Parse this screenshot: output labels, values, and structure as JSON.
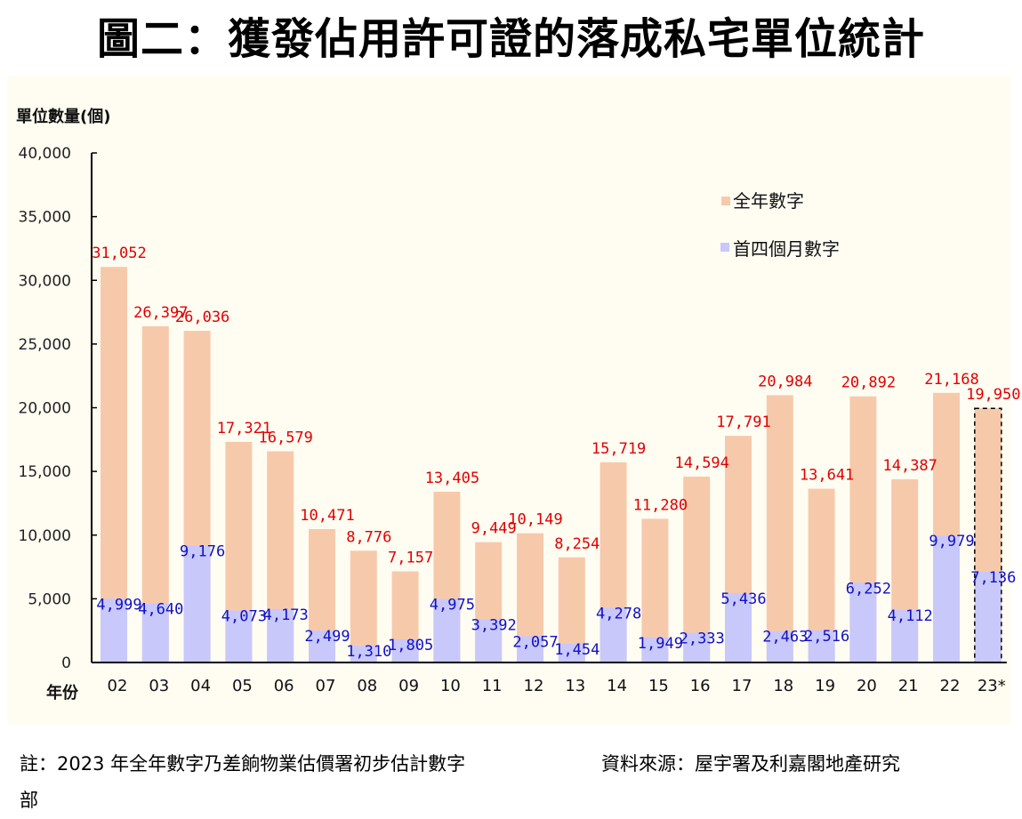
{
  "title": "圖二：獲發佔用許可證的落成私宅單位統計",
  "footer": {
    "note_line1": "註：2023 年全年數字乃差餉物業估價署初步估計數字",
    "note_line2": "部",
    "source": "資料來源：屋宇署及利嘉閣地產研究"
  },
  "colors": {
    "full_year": "#f7c9ab",
    "first_four_months": "#c8c8fb",
    "full_label": "#e00000",
    "part_label": "#1010c8",
    "background": "#fffdf2"
  },
  "chart_data": {
    "type": "bar",
    "title": "圖二：獲發佔用許可證的落成私宅單位統計",
    "ylabel": "單位數量(個)",
    "xlabel": "年份",
    "ylim": [
      0,
      40000
    ],
    "yticks": [
      0,
      5000,
      10000,
      15000,
      20000,
      25000,
      30000,
      35000,
      40000
    ],
    "ytick_labels": [
      "0",
      "5,000",
      "10,000",
      "15,000",
      "20,000",
      "25,000",
      "30,000",
      "35,000",
      "40,000"
    ],
    "grid": false,
    "legend_position": "top-right",
    "overlap": true,
    "categories": [
      "02",
      "03",
      "04",
      "05",
      "06",
      "07",
      "08",
      "09",
      "10",
      "11",
      "12",
      "13",
      "14",
      "15",
      "16",
      "17",
      "18",
      "19",
      "20",
      "21",
      "22",
      "23*"
    ],
    "series": [
      {
        "name": "全年數字",
        "values": [
          31052,
          26397,
          26036,
          17321,
          16579,
          10471,
          8776,
          7157,
          13405,
          9449,
          10149,
          8254,
          15719,
          11280,
          14594,
          17791,
          20984,
          13641,
          20892,
          14387,
          21168,
          19950
        ],
        "labels": [
          "31,052",
          "26,397",
          "26,036",
          "17,321",
          "16,579",
          "10,471",
          "8,776",
          "7,157",
          "13,405",
          "9,449",
          "10,149",
          "8,254",
          "15,719",
          "11,280",
          "14,594",
          "17,791",
          "20,984",
          "13,641",
          "20,892",
          "14,387",
          "21,168",
          "19,950"
        ]
      },
      {
        "name": "首四個月數字",
        "values": [
          4999,
          4640,
          9176,
          4073,
          4173,
          2499,
          1310,
          1805,
          4975,
          3392,
          2057,
          1454,
          4278,
          1949,
          2333,
          5436,
          2463,
          2516,
          6252,
          4112,
          9979,
          7136
        ],
        "labels": [
          "4,999",
          "4,640",
          "9,176",
          "4,073",
          "4,173",
          "2,499",
          "1,310",
          "1,805",
          "4,975",
          "3,392",
          "2,057",
          "1,454",
          "4,278",
          "1,949",
          "2,333",
          "5,436",
          "2,463",
          "2,516",
          "6,252",
          "4,112",
          "9,979",
          "7,136"
        ]
      }
    ],
    "estimated_categories": [
      "23*"
    ]
  }
}
